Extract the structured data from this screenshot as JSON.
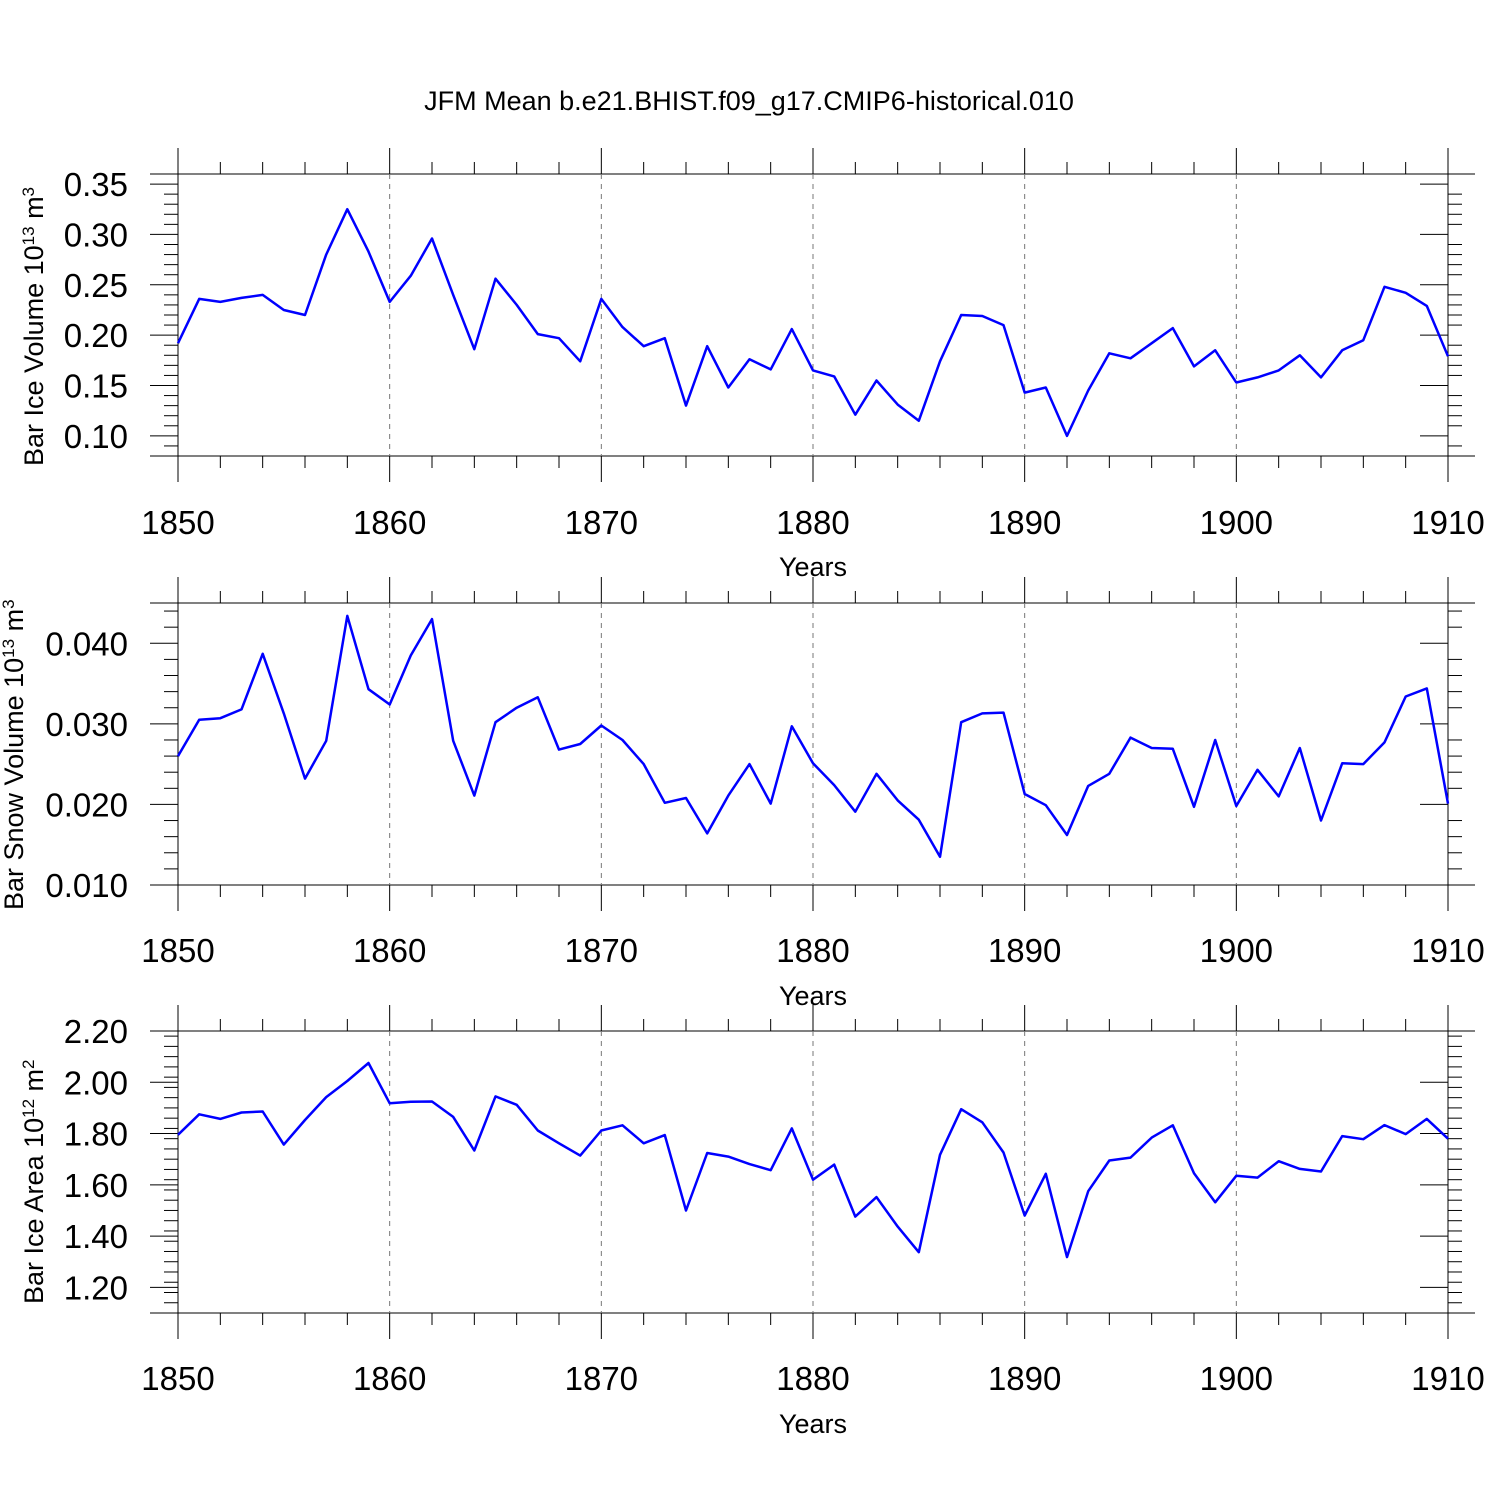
{
  "title": "JFM Mean b.e21.BHIST.f09_g17.CMIP6-historical.010",
  "colors": {
    "line": "#0000ff",
    "axis": "#000000",
    "grid": "#777777"
  },
  "chart_data": [
    {
      "type": "line",
      "ylabel_main": "Bar Ice Volume 10",
      "ylabel_sup1": "13",
      "ylabel_mid": " m",
      "ylabel_sup2": "3",
      "xlabel": "Years",
      "xlim": [
        1850,
        1910
      ],
      "ylim": [
        0.08,
        0.36
      ],
      "xticks": [
        "1850",
        "1860",
        "1870",
        "1880",
        "1890",
        "1900",
        "1910"
      ],
      "yticks": [
        "0.10",
        "0.15",
        "0.20",
        "0.25",
        "0.30",
        "0.35"
      ],
      "ytick_values": [
        0.1,
        0.15,
        0.2,
        0.25,
        0.3,
        0.35
      ],
      "yminor_step": 0.01,
      "series": [
        {
          "name": "Bar Ice Volume",
          "x_start": 1850,
          "values": [
            0.192,
            0.236,
            0.233,
            0.237,
            0.24,
            0.225,
            0.22,
            0.28,
            0.325,
            0.283,
            0.233,
            0.259,
            0.296,
            0.24,
            0.186,
            0.256,
            0.23,
            0.201,
            0.197,
            0.174,
            0.236,
            0.208,
            0.189,
            0.197,
            0.13,
            0.189,
            0.148,
            0.176,
            0.166,
            0.206,
            0.165,
            0.159,
            0.121,
            0.155,
            0.131,
            0.115,
            0.174,
            0.22,
            0.219,
            0.21,
            0.143,
            0.148,
            0.1,
            0.145,
            0.182,
            0.177,
            0.192,
            0.207,
            0.169,
            0.185,
            0.153,
            0.158,
            0.165,
            0.18,
            0.158,
            0.185,
            0.195,
            0.248,
            0.242,
            0.229,
            0.179
          ]
        }
      ]
    },
    {
      "type": "line",
      "ylabel_main": "Bar Snow Volume 10",
      "ylabel_sup1": "13",
      "ylabel_mid": " m",
      "ylabel_sup2": "3",
      "xlabel": "Years",
      "xlim": [
        1850,
        1910
      ],
      "ylim": [
        0.01,
        0.045
      ],
      "xticks": [
        "1850",
        "1860",
        "1870",
        "1880",
        "1890",
        "1900",
        "1910"
      ],
      "yticks": [
        "0.010",
        "0.020",
        "0.030",
        "0.040"
      ],
      "ytick_values": [
        0.01,
        0.02,
        0.03,
        0.04
      ],
      "yminor_step": 0.002,
      "series": [
        {
          "name": "Bar Snow Volume",
          "x_start": 1850,
          "values": [
            0.026,
            0.0305,
            0.0307,
            0.0318,
            0.0387,
            0.0313,
            0.0232,
            0.0279,
            0.0434,
            0.0343,
            0.0324,
            0.0385,
            0.043,
            0.0279,
            0.0211,
            0.0302,
            0.032,
            0.0333,
            0.0268,
            0.0275,
            0.0298,
            0.028,
            0.025,
            0.0202,
            0.0208,
            0.0164,
            0.0211,
            0.025,
            0.0201,
            0.0297,
            0.0251,
            0.0224,
            0.0191,
            0.0238,
            0.0205,
            0.0181,
            0.0135,
            0.0302,
            0.0313,
            0.0314,
            0.0213,
            0.0199,
            0.0162,
            0.0223,
            0.0238,
            0.0283,
            0.027,
            0.0269,
            0.0197,
            0.028,
            0.0198,
            0.0243,
            0.021,
            0.027,
            0.018,
            0.0251,
            0.025,
            0.0277,
            0.0334,
            0.0344,
            0.0201
          ]
        }
      ]
    },
    {
      "type": "line",
      "ylabel_main": "Bar Ice Area 10",
      "ylabel_sup1": "12",
      "ylabel_mid": " m",
      "ylabel_sup2": "2",
      "xlabel": "Years",
      "xlim": [
        1850,
        1910
      ],
      "ylim": [
        1.1,
        2.2
      ],
      "xticks": [
        "1850",
        "1860",
        "1870",
        "1880",
        "1890",
        "1900",
        "1910"
      ],
      "yticks": [
        "1.20",
        "1.40",
        "1.60",
        "1.80",
        "2.00",
        "2.20"
      ],
      "ytick_values": [
        1.2,
        1.4,
        1.6,
        1.8,
        2.0,
        2.2
      ],
      "yminor_step": 0.04,
      "series": [
        {
          "name": "Bar Ice Area",
          "x_start": 1850,
          "values": [
            1.795,
            1.875,
            1.857,
            1.882,
            1.886,
            1.757,
            1.853,
            1.942,
            2.005,
            2.075,
            1.918,
            1.924,
            1.925,
            1.865,
            1.734,
            1.945,
            1.912,
            1.812,
            1.762,
            1.714,
            1.812,
            1.832,
            1.762,
            1.794,
            1.5,
            1.724,
            1.71,
            1.681,
            1.657,
            1.82,
            1.62,
            1.679,
            1.476,
            1.552,
            1.437,
            1.337,
            1.717,
            1.895,
            1.844,
            1.726,
            1.48,
            1.643,
            1.318,
            1.575,
            1.695,
            1.706,
            1.784,
            1.832,
            1.645,
            1.532,
            1.635,
            1.628,
            1.692,
            1.662,
            1.652,
            1.79,
            1.778,
            1.833,
            1.798,
            1.857,
            1.78
          ]
        }
      ]
    }
  ]
}
